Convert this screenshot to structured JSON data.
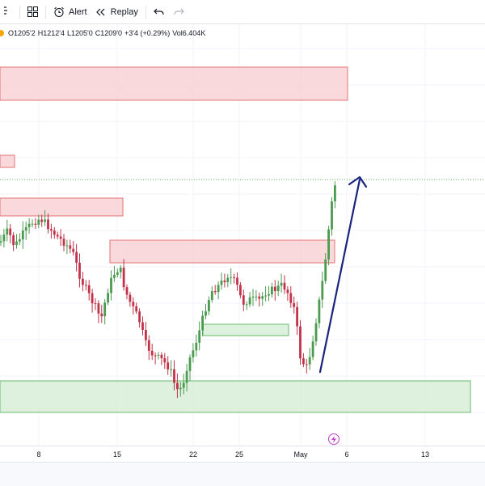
{
  "toolbar": {
    "indicators_icon": "fx-icon",
    "layout_icon": "grid-icon",
    "alert_label": "Alert",
    "replay_label": "Replay",
    "undo_icon": "undo-icon",
    "redo_icon": "redo-icon"
  },
  "legend": {
    "open": "O1205'2",
    "high": "H1212'4",
    "low": "L1205'0",
    "close": "C1209'0",
    "change": "+3'4 (+0.29%)",
    "volume": "Vol6.404K"
  },
  "colors": {
    "up": "#4a9a4f",
    "down": "#c2334a",
    "supply_zone_fill": "#f8d2d6",
    "supply_zone_border": "#e57373",
    "demand_zone_fill": "#d8efd9",
    "demand_zone_border": "#66bb6a",
    "arrow": "#1a237e",
    "price_line": "#4caf50"
  },
  "chart_data": {
    "type": "candlestick",
    "x_tick_labels": [
      "8",
      "15",
      "22",
      "25",
      "May",
      "6",
      "13"
    ],
    "annotations": [
      "supply-zone",
      "supply-zone",
      "supply-zone",
      "supply-zone",
      "demand-zone",
      "demand-zone",
      "trend-arrow"
    ]
  }
}
